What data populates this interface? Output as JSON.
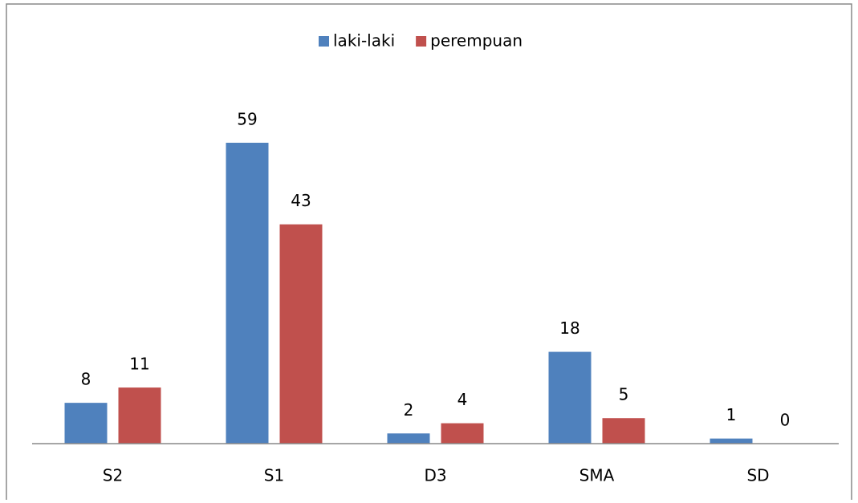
{
  "chart_data": {
    "type": "bar",
    "categories": [
      "S2",
      "S1",
      "D3",
      "SMA",
      "SD"
    ],
    "series": [
      {
        "name": "laki-laki",
        "color": "#4f81bd",
        "values": [
          8,
          59,
          2,
          18,
          1
        ]
      },
      {
        "name": "perempuan",
        "color": "#c0504d",
        "values": [
          11,
          43,
          4,
          5,
          0
        ]
      }
    ],
    "ylim": [
      0,
      70
    ],
    "legend": "top"
  }
}
